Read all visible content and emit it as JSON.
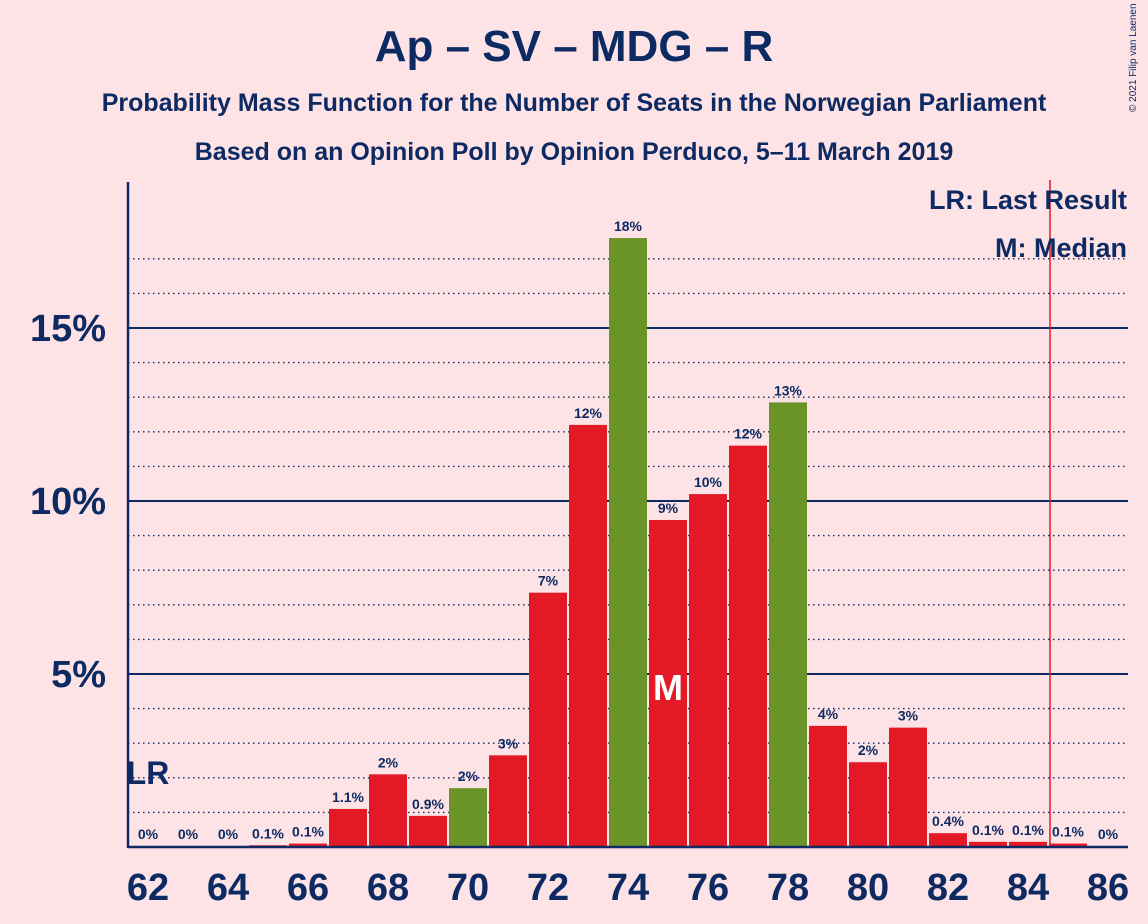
{
  "chart_data": {
    "type": "bar",
    "title": "Ap – SV – MDG – R",
    "subtitle": "Probability Mass Function for the Number of Seats in the Norwegian Parliament",
    "subtitle2": "Based on an Opinion Poll by Opinion Perduco, 5–11 March 2019",
    "copyright": "© 2021 Filip van Laenen",
    "legend": {
      "last_result": "LR: Last Result",
      "median": "M: Median",
      "placement": "top-right"
    },
    "xlabel": "",
    "ylabel": "",
    "ylim": [
      0,
      19.2
    ],
    "y_ticks": [
      {
        "value": 5,
        "label": "5%"
      },
      {
        "value": 10,
        "label": "10%"
      },
      {
        "value": 15,
        "label": "15%"
      }
    ],
    "x_ticks": [
      "62",
      "64",
      "66",
      "68",
      "70",
      "72",
      "74",
      "76",
      "78",
      "80",
      "82",
      "84",
      "86"
    ],
    "seats": [
      62,
      63,
      64,
      65,
      66,
      67,
      68,
      69,
      70,
      71,
      72,
      73,
      74,
      75,
      76,
      77,
      78,
      79,
      80,
      81,
      82,
      83,
      84,
      85,
      86
    ],
    "values": [
      0,
      0,
      0,
      0.05,
      0.1,
      1.1,
      2.1,
      0.9,
      1.7,
      2.65,
      7.35,
      12.2,
      17.6,
      9.45,
      10.2,
      11.6,
      12.85,
      3.5,
      2.45,
      3.45,
      0.4,
      0.15,
      0.15,
      0.1,
      0
    ],
    "labels": [
      "0%",
      "0%",
      "0%",
      "0.1%",
      "0.1%",
      "1.1%",
      "2%",
      "0.9%",
      "2%",
      "3%",
      "7%",
      "12%",
      "18%",
      "9%",
      "10%",
      "12%",
      "13%",
      "4%",
      "2%",
      "3%",
      "0.4%",
      "0.1%",
      "0.1%",
      "0.1%",
      "0%"
    ],
    "majority_seat": 85,
    "last_result_seat": 62,
    "last_result_marker": "LR",
    "median_seat": 75,
    "median_marker": "M",
    "colors": {
      "red": "#e31a25",
      "green": "#6a9428",
      "line": "#0d2a63",
      "majority": "#e31a25",
      "background": "#fde3e6"
    },
    "green_seats": [
      70,
      74,
      78
    ]
  }
}
